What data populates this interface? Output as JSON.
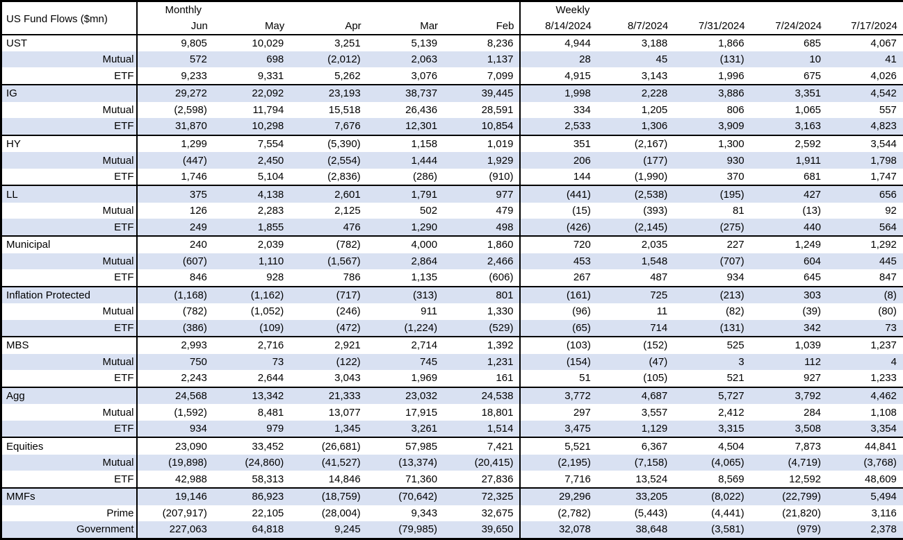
{
  "title": "US Fund Flows ($mn)",
  "sections": {
    "monthly": "Monthly",
    "weekly": "Weekly"
  },
  "columns": {
    "monthly": [
      "Jun",
      "May",
      "Apr",
      "Mar",
      "Feb"
    ],
    "weekly": [
      "8/14/2024",
      "8/7/2024",
      "7/31/2024",
      "7/24/2024",
      "7/17/2024"
    ]
  },
  "colors": {
    "band": "#d9e1f2",
    "border": "#000000",
    "text": "#000000"
  },
  "chart_data": {
    "type": "table",
    "title": "US Fund Flows ($mn)",
    "column_groups": [
      "Monthly",
      "Weekly"
    ],
    "columns": [
      "Jun",
      "May",
      "Apr",
      "Mar",
      "Feb",
      "8/14/2024",
      "8/7/2024",
      "7/31/2024",
      "7/24/2024",
      "7/17/2024"
    ]
  },
  "rows": [
    {
      "label": "UST",
      "type": "category",
      "monthly": [
        "9,805",
        "10,029",
        "3,251",
        "5,139",
        "8,236"
      ],
      "weekly": [
        "4,944",
        "3,188",
        "1,866",
        "685",
        "4,067"
      ]
    },
    {
      "label": "Mutual",
      "type": "sub",
      "monthly": [
        "572",
        "698",
        "(2,012)",
        "2,063",
        "1,137"
      ],
      "weekly": [
        "28",
        "45",
        "(131)",
        "10",
        "41"
      ]
    },
    {
      "label": "ETF",
      "type": "sub",
      "monthly": [
        "9,233",
        "9,331",
        "5,262",
        "3,076",
        "7,099"
      ],
      "weekly": [
        "4,915",
        "3,143",
        "1,996",
        "675",
        "4,026"
      ]
    },
    {
      "label": "IG",
      "type": "category",
      "monthly": [
        "29,272",
        "22,092",
        "23,193",
        "38,737",
        "39,445"
      ],
      "weekly": [
        "1,998",
        "2,228",
        "3,886",
        "3,351",
        "4,542"
      ]
    },
    {
      "label": "Mutual",
      "type": "sub",
      "monthly": [
        "(2,598)",
        "11,794",
        "15,518",
        "26,436",
        "28,591"
      ],
      "weekly": [
        "334",
        "1,205",
        "806",
        "1,065",
        "557"
      ]
    },
    {
      "label": "ETF",
      "type": "sub",
      "monthly": [
        "31,870",
        "10,298",
        "7,676",
        "12,301",
        "10,854"
      ],
      "weekly": [
        "2,533",
        "1,306",
        "3,909",
        "3,163",
        "4,823"
      ]
    },
    {
      "label": "HY",
      "type": "category",
      "monthly": [
        "1,299",
        "7,554",
        "(5,390)",
        "1,158",
        "1,019"
      ],
      "weekly": [
        "351",
        "(2,167)",
        "1,300",
        "2,592",
        "3,544"
      ]
    },
    {
      "label": "Mutual",
      "type": "sub",
      "monthly": [
        "(447)",
        "2,450",
        "(2,554)",
        "1,444",
        "1,929"
      ],
      "weekly": [
        "206",
        "(177)",
        "930",
        "1,911",
        "1,798"
      ]
    },
    {
      "label": "ETF",
      "type": "sub",
      "monthly": [
        "1,746",
        "5,104",
        "(2,836)",
        "(286)",
        "(910)"
      ],
      "weekly": [
        "144",
        "(1,990)",
        "370",
        "681",
        "1,747"
      ]
    },
    {
      "label": "LL",
      "type": "category",
      "monthly": [
        "375",
        "4,138",
        "2,601",
        "1,791",
        "977"
      ],
      "weekly": [
        "(441)",
        "(2,538)",
        "(195)",
        "427",
        "656"
      ]
    },
    {
      "label": "Mutual",
      "type": "sub",
      "monthly": [
        "126",
        "2,283",
        "2,125",
        "502",
        "479"
      ],
      "weekly": [
        "(15)",
        "(393)",
        "81",
        "(13)",
        "92"
      ]
    },
    {
      "label": "ETF",
      "type": "sub",
      "monthly": [
        "249",
        "1,855",
        "476",
        "1,290",
        "498"
      ],
      "weekly": [
        "(426)",
        "(2,145)",
        "(275)",
        "440",
        "564"
      ]
    },
    {
      "label": "Municipal",
      "type": "category",
      "monthly": [
        "240",
        "2,039",
        "(782)",
        "4,000",
        "1,860"
      ],
      "weekly": [
        "720",
        "2,035",
        "227",
        "1,249",
        "1,292"
      ]
    },
    {
      "label": "Mutual",
      "type": "sub",
      "monthly": [
        "(607)",
        "1,110",
        "(1,567)",
        "2,864",
        "2,466"
      ],
      "weekly": [
        "453",
        "1,548",
        "(707)",
        "604",
        "445"
      ]
    },
    {
      "label": "ETF",
      "type": "sub",
      "monthly": [
        "846",
        "928",
        "786",
        "1,135",
        "(606)"
      ],
      "weekly": [
        "267",
        "487",
        "934",
        "645",
        "847"
      ]
    },
    {
      "label": "Inflation Protected",
      "type": "category",
      "monthly": [
        "(1,168)",
        "(1,162)",
        "(717)",
        "(313)",
        "801"
      ],
      "weekly": [
        "(161)",
        "725",
        "(213)",
        "303",
        "(8)"
      ]
    },
    {
      "label": "Mutual",
      "type": "sub",
      "monthly": [
        "(782)",
        "(1,052)",
        "(246)",
        "911",
        "1,330"
      ],
      "weekly": [
        "(96)",
        "11",
        "(82)",
        "(39)",
        "(80)"
      ]
    },
    {
      "label": "ETF",
      "type": "sub",
      "monthly": [
        "(386)",
        "(109)",
        "(472)",
        "(1,224)",
        "(529)"
      ],
      "weekly": [
        "(65)",
        "714",
        "(131)",
        "342",
        "73"
      ]
    },
    {
      "label": "MBS",
      "type": "category",
      "monthly": [
        "2,993",
        "2,716",
        "2,921",
        "2,714",
        "1,392"
      ],
      "weekly": [
        "(103)",
        "(152)",
        "525",
        "1,039",
        "1,237"
      ]
    },
    {
      "label": "Mutual",
      "type": "sub",
      "monthly": [
        "750",
        "73",
        "(122)",
        "745",
        "1,231"
      ],
      "weekly": [
        "(154)",
        "(47)",
        "3",
        "112",
        "4"
      ]
    },
    {
      "label": "ETF",
      "type": "sub",
      "monthly": [
        "2,243",
        "2,644",
        "3,043",
        "1,969",
        "161"
      ],
      "weekly": [
        "51",
        "(105)",
        "521",
        "927",
        "1,233"
      ]
    },
    {
      "label": "Agg",
      "type": "category",
      "monthly": [
        "24,568",
        "13,342",
        "21,333",
        "23,032",
        "24,538"
      ],
      "weekly": [
        "3,772",
        "4,687",
        "5,727",
        "3,792",
        "4,462"
      ]
    },
    {
      "label": "Mutual",
      "type": "sub",
      "monthly": [
        "(1,592)",
        "8,481",
        "13,077",
        "17,915",
        "18,801"
      ],
      "weekly": [
        "297",
        "3,557",
        "2,412",
        "284",
        "1,108"
      ]
    },
    {
      "label": "ETF",
      "type": "sub",
      "monthly": [
        "934",
        "979",
        "1,345",
        "3,261",
        "1,514"
      ],
      "weekly": [
        "3,475",
        "1,129",
        "3,315",
        "3,508",
        "3,354"
      ]
    },
    {
      "label": "Equities",
      "type": "category",
      "monthly": [
        "23,090",
        "33,452",
        "(26,681)",
        "57,985",
        "7,421"
      ],
      "weekly": [
        "5,521",
        "6,367",
        "4,504",
        "7,873",
        "44,841"
      ]
    },
    {
      "label": "Mutual",
      "type": "sub",
      "monthly": [
        "(19,898)",
        "(24,860)",
        "(41,527)",
        "(13,374)",
        "(20,415)"
      ],
      "weekly": [
        "(2,195)",
        "(7,158)",
        "(4,065)",
        "(4,719)",
        "(3,768)"
      ]
    },
    {
      "label": "ETF",
      "type": "sub",
      "monthly": [
        "42,988",
        "58,313",
        "14,846",
        "71,360",
        "27,836"
      ],
      "weekly": [
        "7,716",
        "13,524",
        "8,569",
        "12,592",
        "48,609"
      ]
    },
    {
      "label": "MMFs",
      "type": "category",
      "monthly": [
        "19,146",
        "86,923",
        "(18,759)",
        "(70,642)",
        "72,325"
      ],
      "weekly": [
        "29,296",
        "33,205",
        "(8,022)",
        "(22,799)",
        "5,494"
      ]
    },
    {
      "label": "Prime",
      "type": "sub",
      "monthly": [
        "(207,917)",
        "22,105",
        "(28,004)",
        "9,343",
        "32,675"
      ],
      "weekly": [
        "(2,782)",
        "(5,443)",
        "(4,441)",
        "(21,820)",
        "3,116"
      ]
    },
    {
      "label": "Government",
      "type": "sub",
      "monthly": [
        "227,063",
        "64,818",
        "9,245",
        "(79,985)",
        "39,650"
      ],
      "weekly": [
        "32,078",
        "38,648",
        "(3,581)",
        "(979)",
        "2,378"
      ]
    }
  ]
}
